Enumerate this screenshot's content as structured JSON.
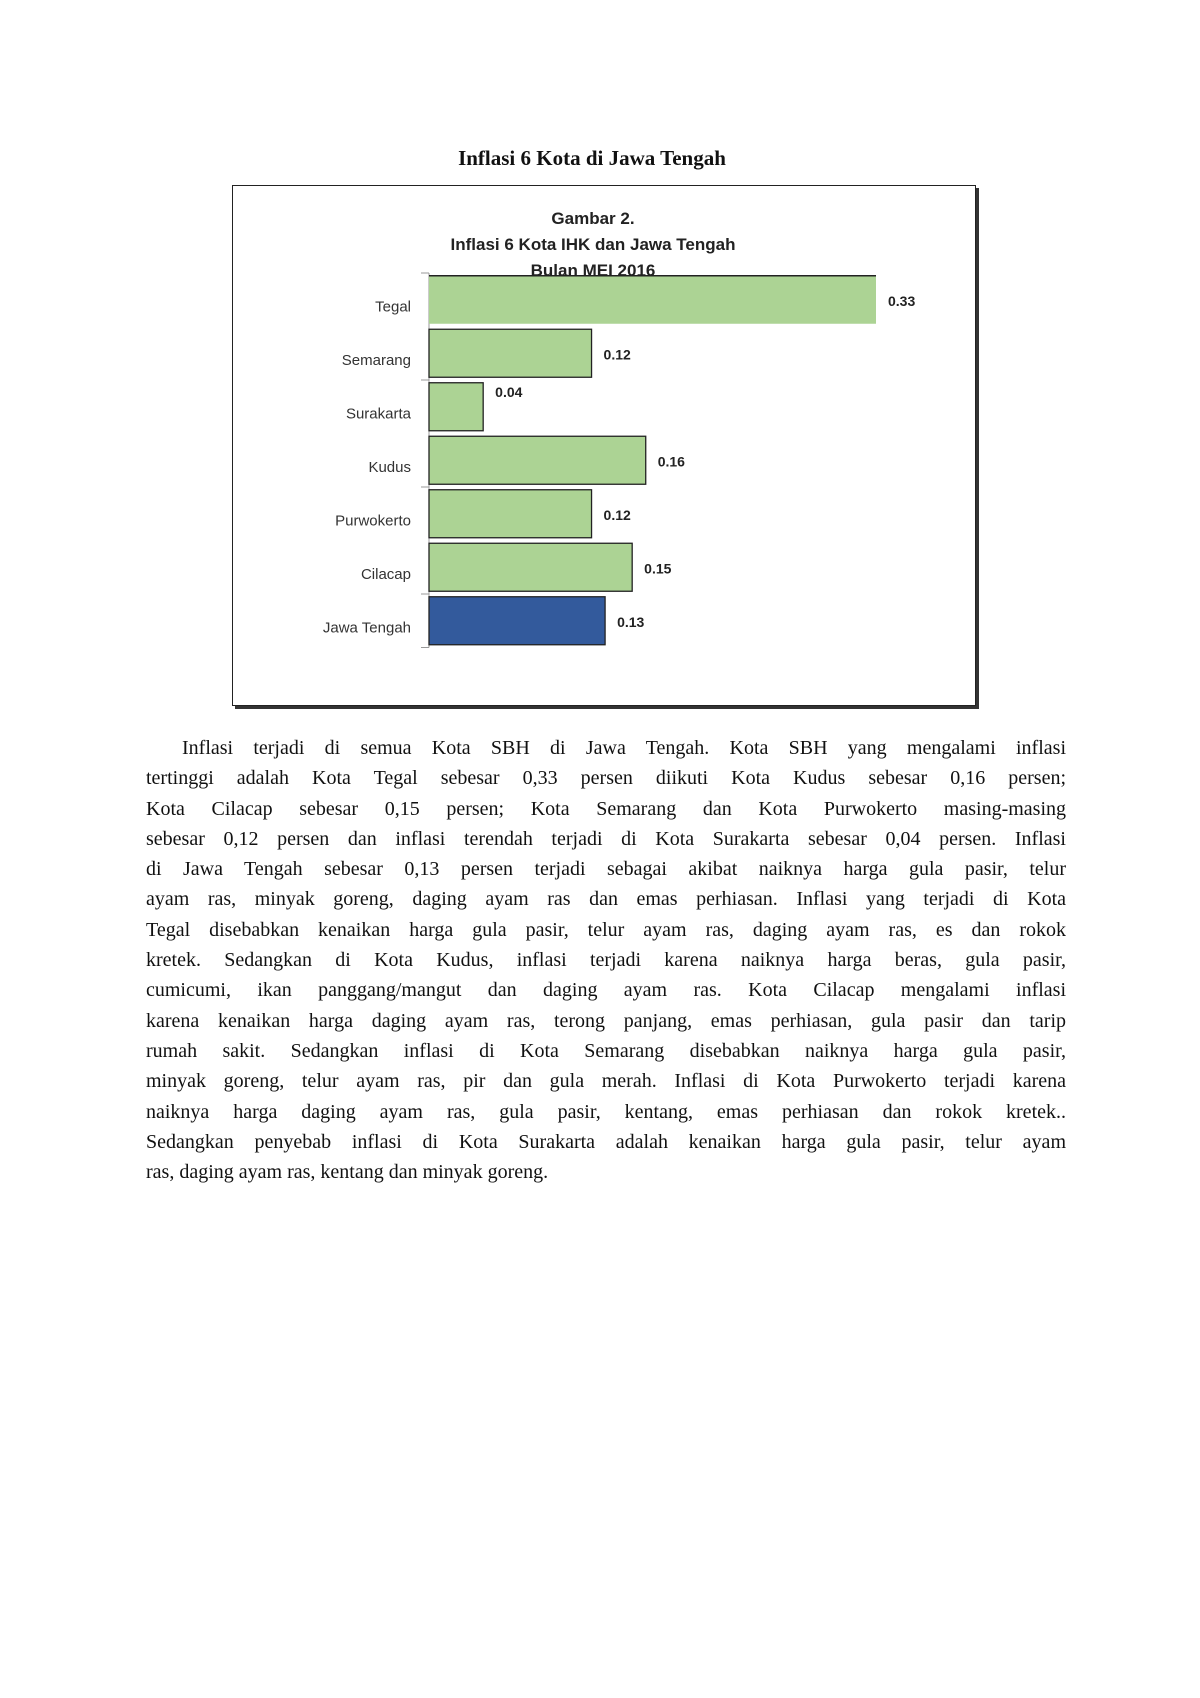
{
  "heading": "Inflasi 6 Kota di Jawa Tengah",
  "chart_data": {
    "type": "bar",
    "orientation": "horizontal",
    "title_lines": [
      "Gambar 2.",
      "Inflasi 6 Kota IHK dan Jawa Tengah",
      "Bulan  MEI 2016"
    ],
    "categories": [
      "Tegal",
      "Semarang",
      "Surakarta",
      "Kudus",
      "Purwokerto",
      "Cilacap",
      "Jawa Tengah"
    ],
    "values": [
      0.33,
      0.12,
      0.04,
      0.16,
      0.12,
      0.15,
      0.13
    ],
    "value_labels": [
      "0.33",
      "0.12",
      "0.04",
      "0.16",
      "0.12",
      "0.15",
      "0.13"
    ],
    "bar_colors": [
      "#acd394",
      "#acd394",
      "#acd394",
      "#acd394",
      "#acd394",
      "#acd394",
      "#335a9c"
    ],
    "xlim": [
      0,
      0.33
    ],
    "grid": false,
    "legend": "none"
  },
  "paragraph_lines": [
    "Inflasi  terjadi di semua Kota SBH di Jawa Tengah.  Kota SBH yang mengalami inflasi",
    "tertinggi adalah Kota Tegal  sebesar 0,33 persen  diikuti Kota Kudus sebesar 0,16 persen;",
    "Kota Cilacap sebesar 0,15 persen; Kota Semarang dan Kota Purwokerto masing-masing",
    "sebesar 0,12 persen dan inflasi terendah terjadi di Kota Surakarta sebesar  0,04 persen. Inflasi",
    "di Jawa Tengah sebesar 0,13 persen terjadi sebagai akibat naiknya harga  gula pasir, telur",
    "ayam ras, minyak goreng, daging ayam ras dan emas perhiasan. Inflasi yang terjadi di Kota",
    "Tegal disebabkan kenaikan harga  gula pasir, telur ayam ras, daging ayam ras, es dan rokok",
    "kretek. Sedangkan di Kota Kudus, inflasi terjadi karena naiknya harga beras, gula pasir,",
    "cumicumi, ikan panggang/mangut dan daging ayam ras. Kota Cilacap mengalami inflasi",
    "karena kenaikan harga daging ayam ras, terong panjang, emas perhiasan, gula pasir dan tarip",
    "rumah sakit. Sedangkan inflasi di Kota Semarang disebabkan naiknya harga  gula pasir,",
    "minyak goreng, telur ayam ras, pir dan gula merah. Inflasi di Kota Purwokerto terjadi karena",
    "naiknya harga daging ayam ras, gula pasir, kentang, emas perhiasan dan rokok kretek..",
    "Sedangkan penyebab inflasi di Kota Surakarta adalah kenaikan harga gula pasir, telur ayam",
    "ras, daging ayam ras, kentang dan minyak goreng."
  ]
}
